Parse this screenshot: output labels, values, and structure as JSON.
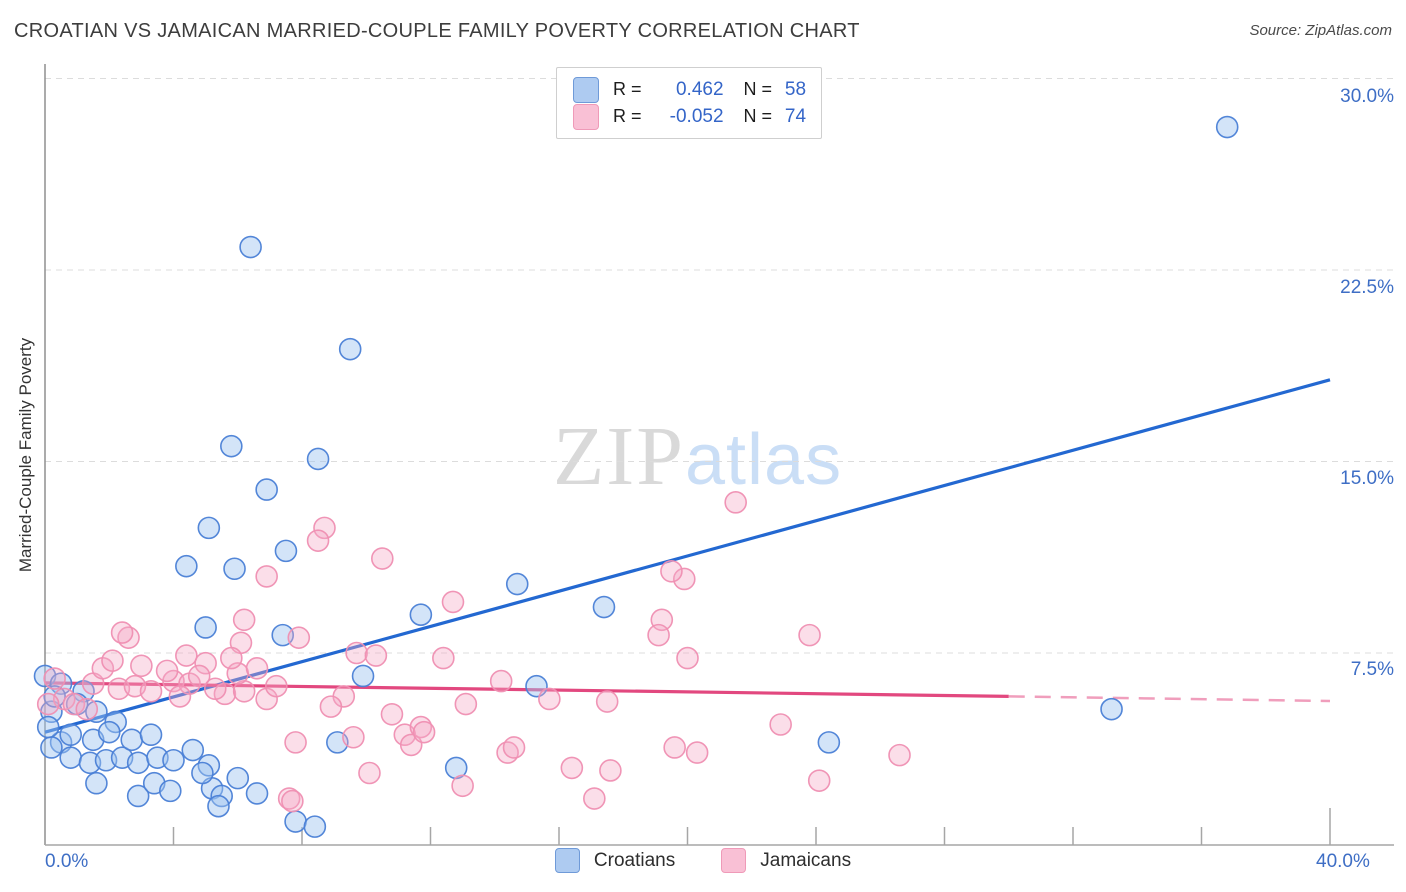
{
  "header": {
    "title": "CROATIAN VS JAMAICAN MARRIED-COUPLE FAMILY POVERTY CORRELATION CHART",
    "source": "Source: ZipAtlas.com"
  },
  "watermark": {
    "zip": "ZIP",
    "atlas": "atlas"
  },
  "stats_legend": {
    "rows": [
      {
        "series": "Croatians",
        "r_label": "R =",
        "r_value": "0.462",
        "n_label": "N =",
        "n_value": "58",
        "swatch_fill": "#aecbf1",
        "swatch_border": "#6f9ad8"
      },
      {
        "series": "Jamaicans",
        "r_label": "R =",
        "r_value": "-0.052",
        "n_label": "N =",
        "n_value": "74",
        "swatch_fill": "#f9c0d5",
        "swatch_border": "#ef9ab8"
      }
    ]
  },
  "y_axis": {
    "title": "Married-Couple Family Poverty",
    "tick_labels": [
      "30.0%",
      "22.5%",
      "15.0%",
      "7.5%"
    ],
    "tick_values": [
      30,
      22.5,
      15,
      7.5
    ]
  },
  "x_axis": {
    "min_label": "0.0%",
    "max_label": "40.0%",
    "min": 0,
    "max": 40,
    "minor_tick_step": 4
  },
  "bottom_legend": {
    "items": [
      {
        "label": "Croatians",
        "swatch_fill": "#aecbf1",
        "swatch_border": "#6f9ad8"
      },
      {
        "label": "Jamaicans",
        "swatch_fill": "#f9c0d5",
        "swatch_border": "#ef9ab8"
      }
    ]
  },
  "chart_data": {
    "type": "scatter",
    "title": "CROATIAN VS JAMAICAN MARRIED-COUPLE FAMILY POVERTY CORRELATION CHART",
    "xlabel": "",
    "ylabel": "Married-Couple Family Poverty",
    "xlim": [
      0,
      40
    ],
    "ylim": [
      0,
      31
    ],
    "grid": "horizontal-dashed",
    "gridline_values": [
      7.5,
      15,
      22.5,
      30
    ],
    "legend_position": "bottom-center",
    "colors": {
      "croatians_fill": "#9ec4f0",
      "croatians_stroke": "#4a7fd6",
      "croatians_line": "#2368d1",
      "jamaicans_fill": "#f5a8c6",
      "jamaicans_stroke": "#ef8fb2",
      "jamaicans_line": "#e2487f",
      "gridline": "#dcdcdc",
      "axis": "#a6a6a6",
      "tick_label": "#3e6ec5"
    },
    "series": [
      {
        "name": "Croatians",
        "r": 0.462,
        "n": 58,
        "points": [
          [
            36.8,
            28.1
          ],
          [
            6.4,
            23.4
          ],
          [
            9.5,
            19.4
          ],
          [
            5.8,
            15.6
          ],
          [
            8.5,
            15.1
          ],
          [
            6.9,
            13.9
          ],
          [
            5.1,
            12.4
          ],
          [
            7.5,
            11.5
          ],
          [
            4.4,
            10.9
          ],
          [
            5.9,
            10.8
          ],
          [
            14.7,
            10.2
          ],
          [
            17.4,
            9.3
          ],
          [
            11.7,
            9.0
          ],
          [
            5.0,
            8.5
          ],
          [
            7.4,
            8.2
          ],
          [
            9.9,
            6.6
          ],
          [
            15.3,
            6.2
          ],
          [
            24.4,
            4.0
          ],
          [
            33.2,
            5.3
          ],
          [
            12.8,
            3.0
          ],
          [
            9.1,
            4.0
          ],
          [
            0.2,
            5.2
          ],
          [
            0.5,
            4.0
          ],
          [
            0.2,
            3.8
          ],
          [
            0.8,
            3.4
          ],
          [
            1.4,
            3.2
          ],
          [
            1.9,
            3.3
          ],
          [
            2.4,
            3.4
          ],
          [
            2.9,
            3.2
          ],
          [
            3.5,
            3.4
          ],
          [
            4.0,
            3.3
          ],
          [
            4.6,
            3.7
          ],
          [
            5.1,
            3.1
          ],
          [
            1.6,
            2.4
          ],
          [
            2.9,
            1.9
          ],
          [
            3.4,
            2.4
          ],
          [
            3.9,
            2.1
          ],
          [
            5.2,
            2.2
          ],
          [
            5.5,
            1.9
          ],
          [
            5.4,
            1.5
          ],
          [
            0.0,
            6.6
          ],
          [
            0.5,
            6.3
          ],
          [
            1.2,
            6.0
          ],
          [
            0.3,
            5.8
          ],
          [
            1.0,
            5.5
          ],
          [
            1.6,
            5.2
          ],
          [
            2.2,
            4.8
          ],
          [
            0.1,
            4.6
          ],
          [
            0.8,
            4.3
          ],
          [
            1.5,
            4.1
          ],
          [
            2.0,
            4.4
          ],
          [
            2.7,
            4.1
          ],
          [
            3.3,
            4.3
          ],
          [
            4.9,
            2.8
          ],
          [
            6.0,
            2.6
          ],
          [
            7.8,
            0.9
          ],
          [
            8.4,
            0.7
          ],
          [
            6.6,
            2.0
          ]
        ]
      },
      {
        "name": "Jamaicans",
        "r": -0.052,
        "n": 74,
        "points": [
          [
            21.5,
            13.4
          ],
          [
            8.7,
            12.4
          ],
          [
            8.5,
            11.9
          ],
          [
            10.5,
            11.2
          ],
          [
            19.9,
            10.4
          ],
          [
            19.5,
            10.7
          ],
          [
            6.9,
            10.5
          ],
          [
            12.7,
            9.5
          ],
          [
            6.2,
            8.8
          ],
          [
            19.2,
            8.8
          ],
          [
            23.8,
            8.2
          ],
          [
            19.1,
            8.2
          ],
          [
            7.9,
            8.1
          ],
          [
            2.6,
            8.1
          ],
          [
            2.4,
            8.3
          ],
          [
            6.1,
            7.9
          ],
          [
            20.0,
            7.3
          ],
          [
            9.7,
            7.5
          ],
          [
            10.3,
            7.4
          ],
          [
            12.4,
            7.3
          ],
          [
            4.4,
            7.4
          ],
          [
            1.5,
            6.3
          ],
          [
            0.6,
            5.7
          ],
          [
            0.9,
            5.5
          ],
          [
            1.3,
            5.3
          ],
          [
            2.3,
            6.1
          ],
          [
            2.8,
            6.2
          ],
          [
            3.3,
            6.0
          ],
          [
            4.0,
            6.4
          ],
          [
            4.5,
            6.3
          ],
          [
            5.6,
            5.9
          ],
          [
            6.2,
            6.0
          ],
          [
            6.9,
            5.7
          ],
          [
            6.0,
            6.7
          ],
          [
            0.1,
            5.5
          ],
          [
            9.3,
            5.8
          ],
          [
            8.9,
            5.4
          ],
          [
            9.6,
            4.2
          ],
          [
            7.8,
            4.0
          ],
          [
            10.8,
            5.1
          ],
          [
            11.2,
            4.3
          ],
          [
            11.4,
            3.9
          ],
          [
            11.7,
            4.6
          ],
          [
            11.8,
            4.4
          ],
          [
            13.1,
            5.5
          ],
          [
            14.2,
            6.4
          ],
          [
            14.4,
            3.6
          ],
          [
            14.6,
            3.8
          ],
          [
            10.1,
            2.8
          ],
          [
            7.6,
            1.8
          ],
          [
            16.4,
            3.0
          ],
          [
            17.1,
            1.8
          ],
          [
            17.6,
            2.9
          ],
          [
            15.7,
            5.7
          ],
          [
            17.5,
            5.6
          ],
          [
            19.6,
            3.8
          ],
          [
            22.9,
            4.7
          ],
          [
            26.6,
            3.5
          ],
          [
            24.1,
            2.5
          ],
          [
            20.3,
            3.6
          ],
          [
            0.3,
            6.5
          ],
          [
            1.8,
            6.9
          ],
          [
            2.1,
            7.2
          ],
          [
            3.0,
            7.0
          ],
          [
            3.8,
            6.8
          ],
          [
            5.0,
            7.1
          ],
          [
            5.8,
            7.3
          ],
          [
            4.2,
            5.8
          ],
          [
            4.8,
            6.6
          ],
          [
            5.3,
            6.1
          ],
          [
            6.6,
            6.9
          ],
          [
            7.2,
            6.2
          ],
          [
            7.7,
            1.7
          ],
          [
            13.0,
            2.3
          ]
        ]
      }
    ],
    "trend_lines": [
      {
        "series": "Croatians",
        "style": "solid",
        "x_start": 0,
        "y_start": 4.4,
        "x_end": 40,
        "y_end": 18.2
      },
      {
        "series": "Jamaicans",
        "style": "solid",
        "x_start": 0,
        "y_start": 6.33,
        "x_end": 30,
        "y_end": 5.8
      },
      {
        "series": "Jamaicans",
        "style": "dashed",
        "x_start": 30,
        "y_start": 5.8,
        "x_end": 40,
        "y_end": 5.62
      }
    ]
  }
}
